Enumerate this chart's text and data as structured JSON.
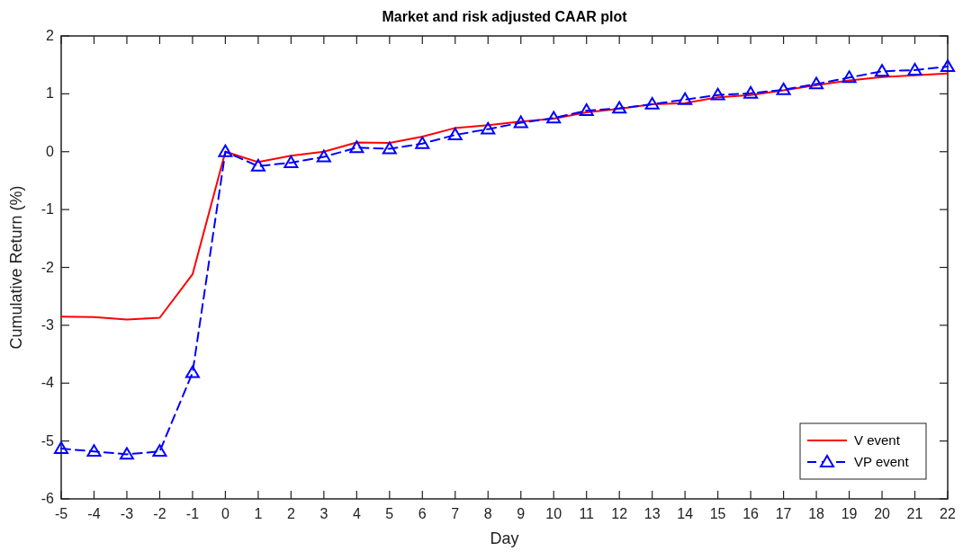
{
  "chart_data": {
    "type": "line",
    "title": "Market and risk adjusted CAAR plot",
    "xlabel": "Day",
    "ylabel": "Cumulative Return (%)",
    "x": [
      -5,
      -4,
      -3,
      -2,
      -1,
      0,
      1,
      2,
      3,
      4,
      5,
      6,
      7,
      8,
      9,
      10,
      11,
      12,
      13,
      14,
      15,
      16,
      17,
      18,
      19,
      20,
      21,
      22
    ],
    "series": [
      {
        "name": "V event",
        "color": "#ff0000",
        "line_style": "solid",
        "marker": "none",
        "values": [
          -2.85,
          -2.86,
          -2.9,
          -2.87,
          -2.12,
          0,
          -0.18,
          -0.07,
          0.0,
          0.16,
          0.15,
          0.26,
          0.41,
          0.46,
          0.52,
          0.57,
          0.68,
          0.74,
          0.82,
          0.84,
          0.94,
          0.98,
          1.06,
          1.15,
          1.23,
          1.29,
          1.32,
          1.35
        ]
      },
      {
        "name": "VP event",
        "color": "#0000ff",
        "line_style": "dashed",
        "marker": "triangle",
        "values": [
          -5.13,
          -5.18,
          -5.23,
          -5.18,
          -3.82,
          0,
          -0.25,
          -0.19,
          -0.09,
          0.07,
          0.05,
          0.14,
          0.29,
          0.39,
          0.5,
          0.58,
          0.71,
          0.75,
          0.82,
          0.9,
          0.98,
          1.01,
          1.07,
          1.17,
          1.28,
          1.39,
          1.41,
          1.47
        ]
      }
    ],
    "xlim": [
      -5,
      22
    ],
    "xticks": [
      -5,
      -4,
      -3,
      -2,
      -1,
      0,
      1,
      2,
      3,
      4,
      5,
      6,
      7,
      8,
      9,
      10,
      11,
      12,
      13,
      14,
      15,
      16,
      17,
      18,
      19,
      20,
      21,
      22
    ],
    "ylim": [
      -6,
      2
    ],
    "yticks": [
      -6,
      -5,
      -4,
      -3,
      -2,
      -1,
      0,
      1,
      2
    ],
    "grid": false,
    "legend": "bottom right"
  }
}
